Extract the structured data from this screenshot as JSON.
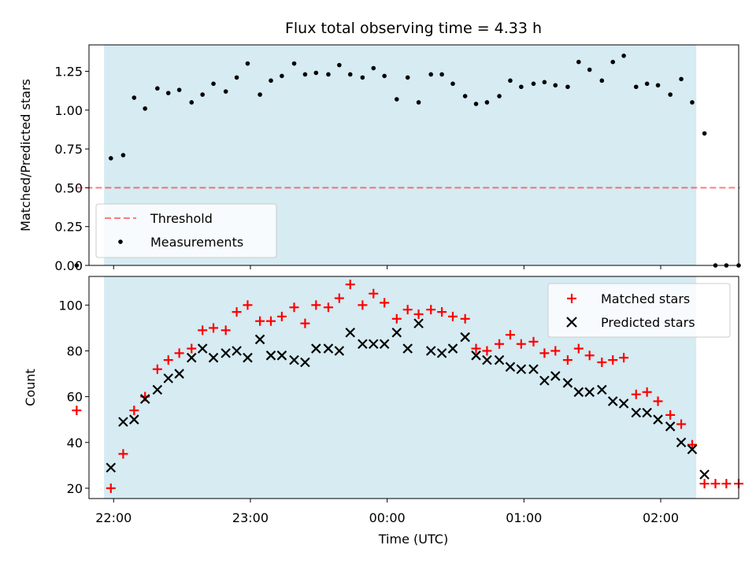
{
  "chart_data": [
    {
      "type": "scatter",
      "title": "Flux total observing time = 4.33 h",
      "xlabel": "",
      "ylabel": "Matched/Predicted stars",
      "xlim_hours": [
        21.82,
        26.57
      ],
      "ylim": [
        0,
        1.42
      ],
      "yticks": [
        0.0,
        0.25,
        0.5,
        0.75,
        1.0,
        1.25
      ],
      "ytick_labels": [
        "0.00",
        "0.25",
        "0.50",
        "0.75",
        "1.00",
        "1.25"
      ],
      "shaded_interval_hours": [
        21.93,
        26.26
      ],
      "shade_color": "#add8e6",
      "legend_position": "lower-left",
      "threshold": {
        "name": "Threshold",
        "y": 0.5,
        "x_hours": [
          21.73,
          26.58
        ],
        "color": "#ff0000"
      },
      "series": [
        {
          "name": "Measurements",
          "color": "#000000",
          "marker": "dot",
          "x_hours": [
            21.73,
            21.98,
            22.07,
            22.15,
            22.23,
            22.32,
            22.4,
            22.48,
            22.57,
            22.65,
            22.73,
            22.82,
            22.9,
            22.98,
            23.07,
            23.15,
            23.23,
            23.32,
            23.4,
            23.48,
            23.57,
            23.65,
            23.73,
            23.82,
            23.9,
            23.98,
            24.07,
            24.15,
            24.23,
            24.32,
            24.4,
            24.48,
            24.57,
            24.65,
            24.73,
            24.82,
            24.9,
            24.98,
            25.07,
            25.15,
            25.23,
            25.32,
            25.4,
            25.48,
            25.57,
            25.65,
            25.73,
            25.82,
            25.9,
            25.98,
            26.07,
            26.15,
            26.23,
            26.32,
            26.4,
            26.48,
            26.57
          ],
          "values": [
            0.0,
            0.69,
            0.71,
            1.08,
            1.01,
            1.14,
            1.11,
            1.13,
            1.05,
            1.1,
            1.17,
            1.12,
            1.21,
            1.3,
            1.1,
            1.19,
            1.22,
            1.3,
            1.23,
            1.24,
            1.23,
            1.29,
            1.23,
            1.21,
            1.27,
            1.22,
            1.07,
            1.21,
            1.05,
            1.23,
            1.23,
            1.17,
            1.09,
            1.04,
            1.05,
            1.09,
            1.19,
            1.15,
            1.17,
            1.18,
            1.16,
            1.15,
            1.31,
            1.26,
            1.19,
            1.31,
            1.35,
            1.15,
            1.17,
            1.16,
            1.1,
            1.2,
            1.05,
            0.85,
            0.0,
            0.0,
            0.0
          ]
        }
      ]
    },
    {
      "type": "scatter",
      "title": "",
      "xlabel": "Time (UTC)",
      "ylabel": "Count",
      "xlim_hours": [
        21.82,
        26.57
      ],
      "ylim": [
        15.5,
        112.5
      ],
      "yticks": [
        20,
        40,
        60,
        80,
        100
      ],
      "ytick_labels": [
        "20",
        "40",
        "60",
        "80",
        "100"
      ],
      "xticks_hours": [
        22,
        23,
        24,
        25,
        26
      ],
      "xtick_labels": [
        "22:00",
        "23:00",
        "00:00",
        "01:00",
        "02:00"
      ],
      "shaded_interval_hours": [
        21.93,
        26.26
      ],
      "shade_color": "#add8e6",
      "legend_position": "upper-right",
      "series": [
        {
          "name": "Matched stars",
          "color": "#ff0000",
          "marker": "plus",
          "x_hours": [
            21.73,
            21.98,
            22.07,
            22.15,
            22.23,
            22.32,
            22.4,
            22.48,
            22.57,
            22.65,
            22.73,
            22.82,
            22.9,
            22.98,
            23.07,
            23.15,
            23.23,
            23.32,
            23.4,
            23.48,
            23.57,
            23.65,
            23.73,
            23.82,
            23.9,
            23.98,
            24.07,
            24.15,
            24.23,
            24.32,
            24.4,
            24.48,
            24.57,
            24.65,
            24.73,
            24.82,
            24.9,
            24.98,
            25.07,
            25.15,
            25.23,
            25.32,
            25.4,
            25.48,
            25.57,
            25.65,
            25.73,
            25.82,
            25.9,
            25.98,
            26.07,
            26.15,
            26.23,
            26.32,
            26.4,
            26.48,
            26.57
          ],
          "values": [
            54,
            20,
            35,
            54,
            60,
            72,
            76,
            79,
            81,
            89,
            90,
            89,
            97,
            100,
            93,
            93,
            95,
            99,
            92,
            100,
            99,
            103,
            109,
            100,
            105,
            101,
            94,
            98,
            96,
            98,
            97,
            95,
            94,
            81,
            80,
            83,
            87,
            83,
            84,
            79,
            80,
            76,
            81,
            78,
            75,
            76,
            77,
            61,
            62,
            58,
            52,
            48,
            39,
            22,
            22,
            22,
            22
          ]
        },
        {
          "name": "Predicted stars",
          "color": "#000000",
          "marker": "x",
          "x_hours": [
            21.98,
            22.07,
            22.15,
            22.23,
            22.32,
            22.4,
            22.48,
            22.57,
            22.65,
            22.73,
            22.82,
            22.9,
            22.98,
            23.07,
            23.15,
            23.23,
            23.32,
            23.4,
            23.48,
            23.57,
            23.65,
            23.73,
            23.82,
            23.9,
            23.98,
            24.07,
            24.15,
            24.23,
            24.32,
            24.4,
            24.48,
            24.57,
            24.65,
            24.73,
            24.82,
            24.9,
            24.98,
            25.07,
            25.15,
            25.23,
            25.32,
            25.4,
            25.48,
            25.57,
            25.65,
            25.73,
            25.82,
            25.9,
            25.98,
            26.07,
            26.15,
            26.23,
            26.32
          ],
          "values": [
            29,
            49,
            50,
            59,
            63,
            68,
            70,
            77,
            81,
            77,
            79,
            80,
            77,
            85,
            78,
            78,
            76,
            75,
            81,
            81,
            80,
            88,
            83,
            83,
            83,
            88,
            81,
            92,
            80,
            79,
            81,
            86,
            78,
            76,
            76,
            73,
            72,
            72,
            67,
            69,
            66,
            62,
            62,
            63,
            58,
            57,
            53,
            53,
            50,
            47,
            40,
            37,
            26
          ]
        }
      ]
    }
  ]
}
